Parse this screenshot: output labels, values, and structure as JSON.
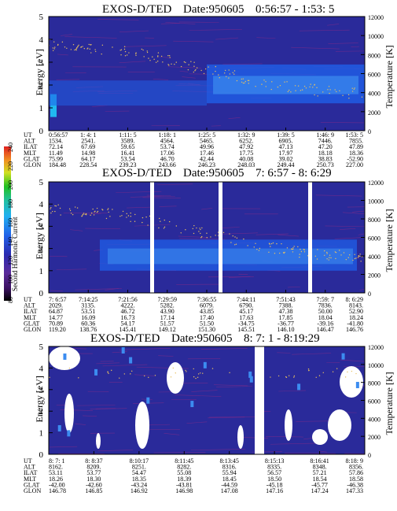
{
  "colors": {
    "background": "#2a2a9a",
    "band": "#1f5fe8",
    "band_bright": "#3c8cf0",
    "contour": "#7a2a8a",
    "gap": "#ffffff",
    "temperature_dots": "#e8c060"
  },
  "colorbar": {
    "label": "Second Harmonic Current",
    "ticks": [
      "240",
      "220",
      "200",
      "180",
      "160",
      "140",
      "120",
      "100",
      "80"
    ]
  },
  "chart_data": [
    {
      "type": "heatmap",
      "title": "EXOS-D/TED",
      "date": "Date:950605",
      "time_range": "0:56:57 - 1:53: 5",
      "ylabel": "Energy [eV]",
      "ylabel_right": "Temperature [K]",
      "ylim": [
        0,
        5
      ],
      "ylim_right": [
        0,
        12000
      ],
      "yticks": [
        "0",
        "1",
        "2",
        "3",
        "4",
        "5"
      ],
      "yticks_right": [
        "0",
        "2000",
        "4000",
        "6000",
        "8000",
        "10000",
        "12000"
      ],
      "row_labels": [
        "UT",
        "ALT",
        "ILAT",
        "MLT",
        "GLAT",
        "GLON"
      ],
      "columns": [
        [
          "0:56:57",
          "1534.",
          "72.14",
          "11.49",
          "75.99",
          "184.48"
        ],
        [
          "1: 4: 1",
          "2541.",
          "67.69",
          "14.98",
          "64.17",
          "228.54"
        ],
        [
          "1:11: 5",
          "3589.",
          "59.65",
          "16.41",
          "53.54",
          "239.23"
        ],
        [
          "1:18: 1",
          "4564.",
          "53.74",
          "17.06",
          "46.70",
          "243.66"
        ],
        [
          "1:25: 5",
          "5465.",
          "49.96",
          "17.46",
          "42.44",
          "246.23"
        ],
        [
          "1:32: 9",
          "6252.",
          "47.92",
          "17.75",
          "40.08",
          "248.03"
        ],
        [
          "1:39: 5",
          "6905.",
          "47.13",
          "17.97",
          "39.02",
          "249.44"
        ],
        [
          "1:46: 9",
          "7446.",
          "47.20",
          "18.18",
          "38.83",
          "250.73"
        ],
        [
          "1:53: 5",
          "7855.",
          "47.89",
          "18.36",
          "-52.90",
          "227.00"
        ]
      ]
    },
    {
      "type": "heatmap",
      "title": "EXOS-D/TED",
      "date": "Date:950605",
      "time_range": "7: 6:57 - 8: 6:29",
      "ylabel": "Energy [eV]",
      "ylabel_right": "Temperature [K]",
      "ylim": [
        0,
        5
      ],
      "ylim_right": [
        0,
        12000
      ],
      "yticks": [
        "0",
        "1",
        "2",
        "3",
        "4",
        "5"
      ],
      "yticks_right": [
        "0",
        "2000",
        "4000",
        "6000",
        "8000",
        "10000",
        "12000"
      ],
      "row_labels": [
        "UT",
        "ALT",
        "ILAT",
        "MLT",
        "GLAT",
        "GLON"
      ],
      "columns": [
        [
          "7: 6:57",
          "2029.",
          "64.87",
          "14.77",
          "70.89",
          "119.20"
        ],
        [
          "7:14:25",
          "3135.",
          "53.51",
          "16.09",
          "60.36",
          "138.76"
        ],
        [
          "7:21:56",
          "4222.",
          "46.72",
          "16.73",
          "54.17",
          "145.41"
        ],
        [
          "7:29:59",
          "5282.",
          "43.90",
          "17.14",
          "51.57",
          "149.12"
        ],
        [
          "7:36:55",
          "6079.",
          "43.85",
          "17.40",
          "51.50",
          "151.30"
        ],
        [
          "7:44:11",
          "6790.",
          "45.17",
          "17.63",
          "-34.75",
          "145.51"
        ],
        [
          "7:51:43",
          "7388.",
          "47.38",
          "17.85",
          "-36.77",
          "146.10"
        ],
        [
          "7:59: 7",
          "7836.",
          "50.00",
          "18.04",
          "-39.16",
          "146.47"
        ],
        [
          "8: 6:29",
          "8143.",
          "52.90",
          "18.24",
          "-41.80",
          "146.76"
        ]
      ]
    },
    {
      "type": "heatmap",
      "title": "EXOS-D/TED",
      "date": "Date:950605",
      "time_range": "8: 7: 1 - 8:19:29",
      "ylabel": "Energy [eV]",
      "ylabel_right": "Temperature [K]",
      "ylim": [
        0,
        5
      ],
      "ylim_right": [
        0,
        12000
      ],
      "yticks": [
        "0",
        "1",
        "2",
        "3",
        "4",
        "5"
      ],
      "yticks_right": [
        "0",
        "2000",
        "4000",
        "6000",
        "8000",
        "10000",
        "12000"
      ],
      "row_labels": [
        "UT",
        "ALT",
        "ILAT",
        "MLT",
        "GLAT",
        "GLON"
      ],
      "columns": [
        [
          "8: 7: 1",
          "8162.",
          "53.11",
          "18.26",
          "-42.00",
          "146.78"
        ],
        [
          "8: 8:37",
          "8209.",
          "53.77",
          "18.30",
          "-42.60",
          "146.85"
        ],
        [
          "8:10:17",
          "8251.",
          "54.47",
          "18.35",
          "-43.24",
          "146.92"
        ],
        [
          "8:11:45",
          "8282.",
          "55.08",
          "18.39",
          "-43.81",
          "146.98"
        ],
        [
          "8:13:45",
          "8316.",
          "55.94",
          "18.45",
          "-44.59",
          "147.08"
        ],
        [
          "8:15:13",
          "8335.",
          "56.57",
          "18.50",
          "-45.18",
          "147.16"
        ],
        [
          "8:16:41",
          "8348.",
          "57.21",
          "18.54",
          "-45.77",
          "147.24"
        ],
        [
          "8:18: 9",
          "8356.",
          "57.86",
          "18.58",
          "-46.38",
          "147.33"
        ]
      ]
    }
  ]
}
